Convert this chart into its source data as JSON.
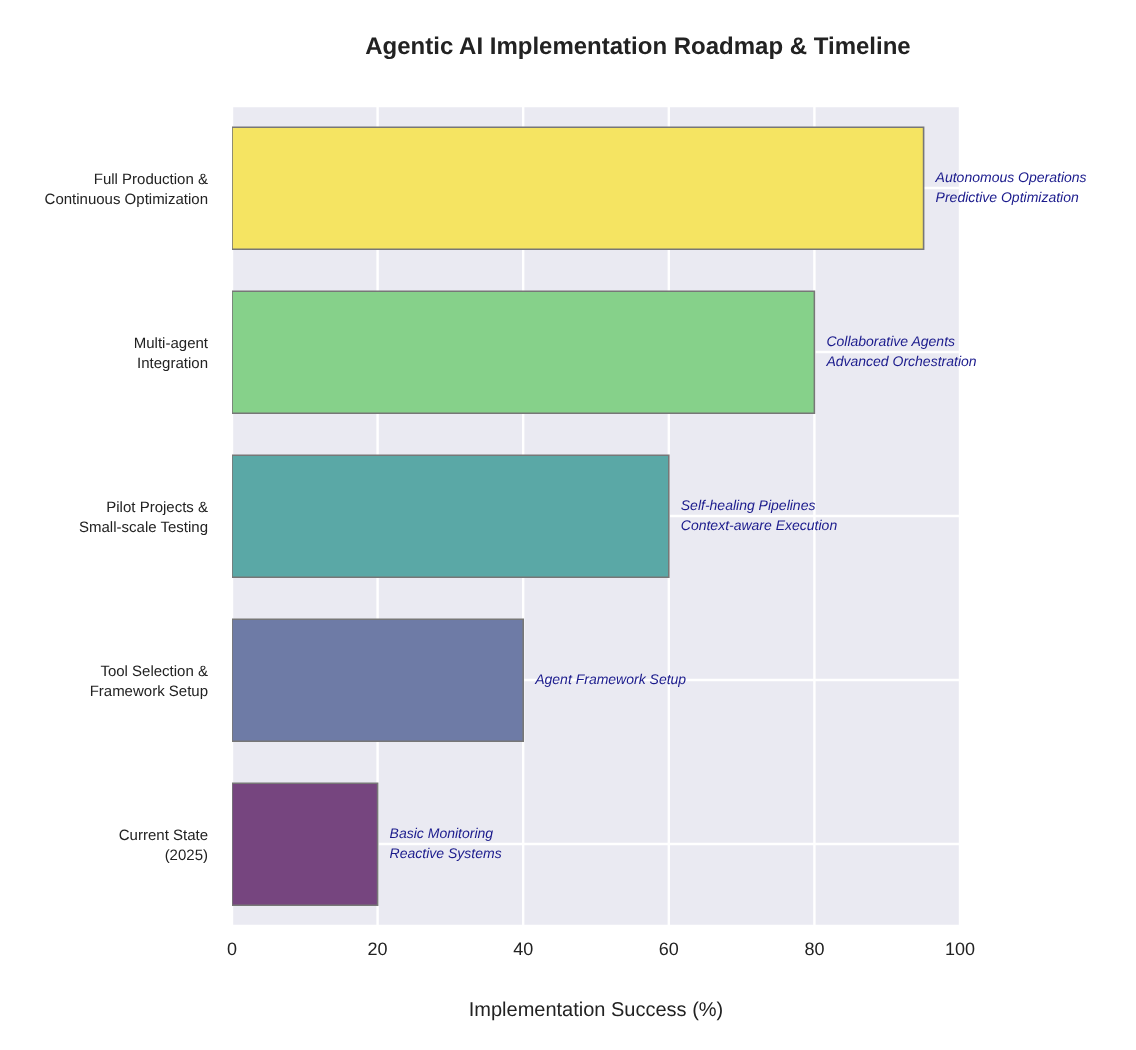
{
  "chart_data": {
    "type": "bar",
    "orientation": "horizontal",
    "title": "Agentic AI Implementation Roadmap & Timeline",
    "xlabel": "Implementation Success (%)",
    "categories": [
      "Full Production &\nContinuous Optimization",
      "Multi-agent\nIntegration",
      "Pilot Projects &\nSmall-scale Testing",
      "Tool Selection &\nFramework Setup",
      "Current State\n(2025)"
    ],
    "values": [
      95,
      80,
      60,
      40,
      20
    ],
    "colors": [
      "#f5e462",
      "#86d18a",
      "#5aa8a6",
      "#6e7ba6",
      "#76457f"
    ],
    "xlim": [
      0,
      100
    ],
    "xticks": [
      0,
      20,
      40,
      60,
      80,
      100
    ],
    "grid": true,
    "annotations": [
      {
        "text": "Autonomous Operations\nPredictive Optimization",
        "x": 95,
        "y": "Full Production &\nContinuous Optimization"
      },
      {
        "text": "Collaborative Agents\nAdvanced Orchestration",
        "x": 80,
        "y": "Multi-agent\nIntegration"
      },
      {
        "text": "Self-healing Pipelines\nContext-aware Execution",
        "x": 60,
        "y": "Pilot Projects &\nSmall-scale Testing"
      },
      {
        "text": "Agent Framework Setup",
        "x": 40,
        "y": "Tool Selection &\nFramework Setup"
      },
      {
        "text": "Basic Monitoring\nReactive Systems",
        "x": 20,
        "y": "Current State\n(2025)"
      }
    ]
  }
}
